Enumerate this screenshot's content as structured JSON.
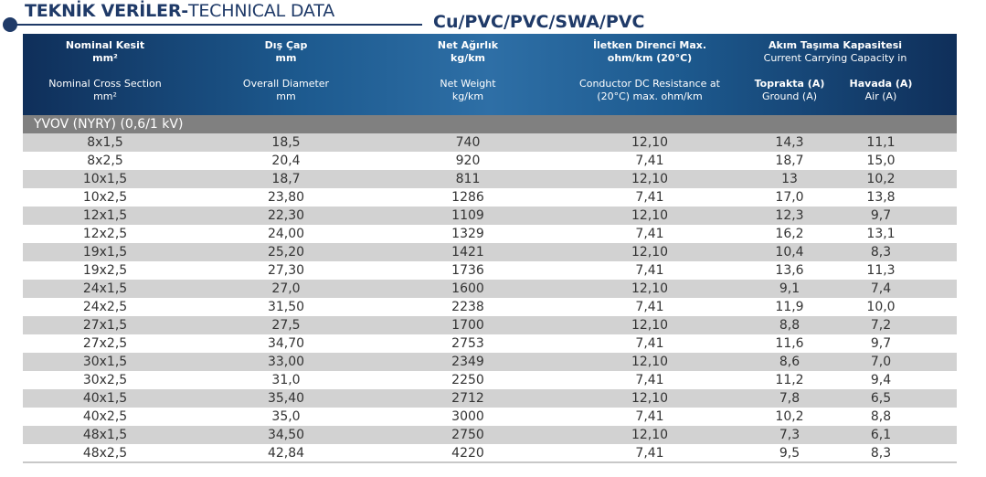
{
  "title_bold": "TEKNİK VERİLER-",
  "title_normal": "TECHNICAL DATA",
  "cable_type": "Cu/PVC/PVC/SWA/PVC",
  "columns": {
    "nominal_tr": "Nominal Kesit",
    "nominal_tr_unit": "mm²",
    "nominal_en": "Nominal Cross Section",
    "nominal_en_unit": "mm²",
    "diameter_tr": "Dış Çap",
    "diameter_tr_unit": "mm",
    "diameter_en": "Overall Diameter",
    "diameter_en_unit": "mm",
    "weight_tr": "Net Ağırlık",
    "weight_tr_unit": "kg/km",
    "weight_en": "Net Weight",
    "weight_en_unit": "kg/km",
    "resistance_tr": "İletken Direnci Max.",
    "resistance_tr_unit": "ohm/km (20°C)",
    "resistance_en_1": "Conductor DC Resistance at",
    "resistance_en_2": "(20°C) max. ohm/km",
    "capacity_tr": "Akım Taşıma Kapasitesi",
    "capacity_en": "Current Carrying Capacity in",
    "ground_tr": "Toprakta (A)",
    "ground_en": "Ground (A)",
    "air_tr": "Havada (A)",
    "air_en": "Air (A)"
  },
  "section_label": "YVOV (NYRY) (0,6/1 kV)",
  "rows": [
    [
      "8x1,5",
      "18,5",
      "740",
      "12,10",
      "14,3",
      "11,1"
    ],
    [
      "8x2,5",
      "20,4",
      "920",
      "7,41",
      "18,7",
      "15,0"
    ],
    [
      "10x1,5",
      "18,7",
      "811",
      "12,10",
      "13",
      "10,2"
    ],
    [
      "10x2,5",
      "23,80",
      "1286",
      "7,41",
      "17,0",
      "13,8"
    ],
    [
      "12x1,5",
      "22,30",
      "1109",
      "12,10",
      "12,3",
      "9,7"
    ],
    [
      "12x2,5",
      "24,00",
      "1329",
      "7,41",
      "16,2",
      "13,1"
    ],
    [
      "19x1,5",
      "25,20",
      "1421",
      "12,10",
      "10,4",
      "8,3"
    ],
    [
      "19x2,5",
      "27,30",
      "1736",
      "7,41",
      "13,6",
      "11,3"
    ],
    [
      "24x1,5",
      "27,0",
      "1600",
      "12,10",
      "9,1",
      "7,4"
    ],
    [
      "24x2,5",
      "31,50",
      "2238",
      "7,41",
      "11,9",
      "10,0"
    ],
    [
      "27x1,5",
      "27,5",
      "1700",
      "12,10",
      "8,8",
      "7,2"
    ],
    [
      "27x2,5",
      "34,70",
      "2753",
      "7,41",
      "11,6",
      "9,7"
    ],
    [
      "30x1,5",
      "33,00",
      "2349",
      "12,10",
      "8,6",
      "7,0"
    ],
    [
      "30x2,5",
      "31,0",
      "2250",
      "7,41",
      "11,2",
      "9,4"
    ],
    [
      "40x1,5",
      "35,40",
      "2712",
      "12,10",
      "7,8",
      "6,5"
    ],
    [
      "40x2,5",
      "35,0",
      "3000",
      "7,41",
      "10,2",
      "8,8"
    ],
    [
      "48x1,5",
      "34,50",
      "2750",
      "12,10",
      "7,3",
      "6,1"
    ],
    [
      "48x2,5",
      "42,84",
      "4220",
      "7,41",
      "9,5",
      "8,3"
    ]
  ]
}
